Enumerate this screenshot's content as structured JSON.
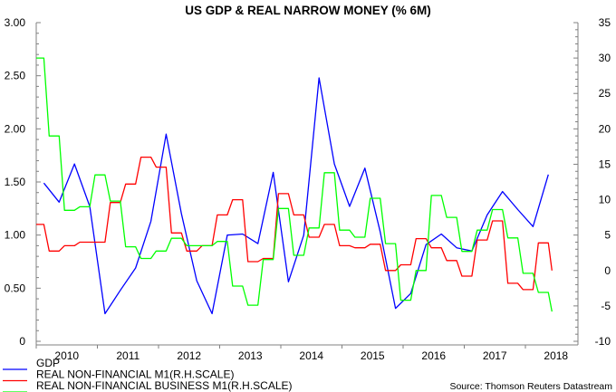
{
  "chart_data": {
    "type": "line",
    "title": "US GDP & REAL NARROW MONEY (% 6M)",
    "source": "Source: Thomson Reuters Datastream",
    "grid": false,
    "legend_placement": "bottom-left",
    "x_tick_labels": [
      "2010",
      "2011",
      "2012",
      "2013",
      "2014",
      "2015",
      "2016",
      "2017",
      "2018"
    ],
    "xlim": [
      2010,
      2018.9
    ],
    "y_left": {
      "lim": [
        0,
        3
      ],
      "tick_labels": [
        "3.00",
        "2.50",
        "2.00",
        "1.50",
        "1.00",
        "0.50",
        "0"
      ],
      "ticks": [
        3,
        2.5,
        2,
        1.5,
        1,
        0.5,
        0
      ]
    },
    "y_right": {
      "lim": [
        -10,
        35
      ],
      "tick_labels": [
        "35",
        "30",
        "25",
        "20",
        "15",
        "10",
        "5",
        "0",
        "-5",
        "-10"
      ],
      "ticks": [
        35,
        30,
        25,
        20,
        15,
        10,
        5,
        0,
        -5,
        -10
      ]
    },
    "x": [
      "2010Q1",
      "2010Q2",
      "2010Q3",
      "2010Q4",
      "2011Q1",
      "2011Q2",
      "2011Q3",
      "2011Q4",
      "2012Q1",
      "2012Q2",
      "2012Q3",
      "2012Q4",
      "2013Q1",
      "2013Q2",
      "2013Q3",
      "2013Q4",
      "2014Q1",
      "2014Q2",
      "2014Q3",
      "2014Q4",
      "2015Q1",
      "2015Q2",
      "2015Q3",
      "2015Q4",
      "2016Q1",
      "2016Q2",
      "2016Q3",
      "2016Q4",
      "2017Q1",
      "2017Q2",
      "2017Q3",
      "2017Q4",
      "2018Q1",
      "2018Q2"
    ],
    "series": [
      {
        "name": "GDP",
        "axis": "left",
        "color": "#0000ff",
        "style": "line",
        "values": [
          1.49,
          1.31,
          1.67,
          1.27,
          0.26,
          0.48,
          0.69,
          1.13,
          1.95,
          1.2,
          0.57,
          0.26,
          1.0,
          1.01,
          0.92,
          1.59,
          0.56,
          1.0,
          2.48,
          1.67,
          1.27,
          1.63,
          1.03,
          0.31,
          0.45,
          0.91,
          1.01,
          0.88,
          0.85,
          1.19,
          1.41,
          1.24,
          1.08,
          1.57
        ]
      },
      {
        "name": "REAL NON-FINANCIAL M1(R.H.SCALE)",
        "axis": "right",
        "color": "#ff0000",
        "style": "step",
        "values": [
          6.5,
          2.75,
          3.5,
          4,
          4,
          9.6,
          12.2,
          16,
          14.6,
          5.3,
          2.75,
          3.5,
          7.85,
          10,
          1.25,
          1.7,
          10.85,
          7.85,
          4.7,
          6.5,
          3.5,
          3.2,
          3.7,
          0,
          0.8,
          4.5,
          3.2,
          1.4,
          -0.8,
          4.3,
          7.0,
          -1.8,
          -2.7,
          3.9
        ],
        "last_month_value": 0
      },
      {
        "name": "REAL NON-FINANCIAL BUSINESS M1(R.H.SCALE)",
        "axis": "right",
        "color": "#00ff00",
        "style": "step",
        "values": [
          30,
          19,
          8.5,
          9,
          13.5,
          9.8,
          3.35,
          1.7,
          2.75,
          4.55,
          3.5,
          3.5,
          4.1,
          -2.2,
          -4.9,
          1.55,
          8.75,
          2.15,
          6,
          13.8,
          5.7,
          4.7,
          10.2,
          3.8,
          -4.2,
          0,
          10.6,
          7.5,
          2.7,
          5.7,
          8.6,
          4.6,
          -0.4,
          -3.1
        ],
        "last_month_value": -5.8
      }
    ]
  }
}
